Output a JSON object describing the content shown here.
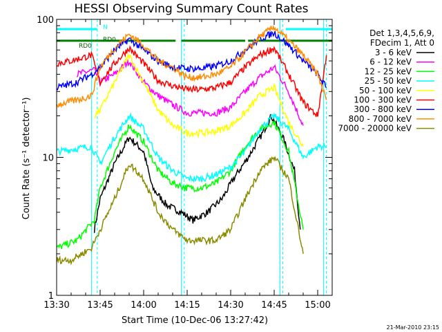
{
  "chart_data": {
    "type": "line",
    "title": "HESSI Observing Summary Count Rates",
    "xlabel": "Start Time (10-Dec-06 13:27:42)",
    "ylabel": "Count Rate (s⁻¹ detector⁻¹)",
    "yscale": "log",
    "ylim": [
      1,
      100
    ],
    "xlim_minutes": [
      13.5,
      15.083
    ],
    "x_ticks": [
      "13:30",
      "13:45",
      "14:00",
      "14:15",
      "14:30",
      "14:45",
      "15:00"
    ],
    "y_ticks": [
      "1",
      "10",
      "100"
    ],
    "legend_header": [
      "Det 1,3,4,5,6,9,",
      "FDecim 1, Att 0"
    ],
    "legend_position": "right",
    "footer": "21-Mar-2010 23:15",
    "annotations": [
      "RD0",
      "RD0",
      "N"
    ],
    "series": [
      {
        "name": "3 - 6 keV",
        "color": "#000000",
        "x": [
          "13:43",
          "13:45",
          "13:50",
          "13:55",
          "14:00",
          "14:03",
          "14:08",
          "14:13",
          "14:17",
          "14:22",
          "14:27",
          "14:31",
          "14:36",
          "14:41",
          "14:44",
          "14:48",
          "14:52",
          "14:54"
        ],
        "y": [
          3,
          5,
          9,
          14,
          11,
          6,
          4.5,
          4,
          3.5,
          4,
          5,
          7,
          10,
          15,
          20,
          14,
          8,
          3
        ]
      },
      {
        "name": "6 - 12 keV",
        "color": "#ff00ff",
        "x": [
          "13:37",
          "13:43",
          "13:45",
          "13:50",
          "13:55",
          "14:00",
          "14:05",
          "14:10",
          "14:15",
          "14:20",
          "14:25",
          "14:30",
          "14:35",
          "14:40",
          "14:45",
          "14:50",
          "14:55"
        ],
        "y": [
          40,
          43,
          35,
          40,
          50,
          35,
          28,
          24,
          21,
          21,
          21,
          23,
          30,
          38,
          45,
          30,
          17
        ]
      },
      {
        "name": "12 - 25 keV",
        "color": "#00ff00",
        "x": [
          "13:30",
          "13:37",
          "13:43",
          "13:45",
          "13:50",
          "13:55",
          "14:00",
          "14:05",
          "14:10",
          "14:15",
          "14:20",
          "14:25",
          "14:30",
          "14:35",
          "14:40",
          "14:45",
          "14:50",
          "14:55"
        ],
        "y": [
          2.2,
          2.5,
          3.5,
          6,
          11,
          17,
          13,
          8,
          6.5,
          6,
          6,
          6.5,
          8,
          12,
          16,
          18,
          11,
          3
        ]
      },
      {
        "name": "25 - 50 keV",
        "color": "#00ffff",
        "x": [
          "13:30",
          "13:42",
          "13:45",
          "13:50",
          "13:55",
          "14:00",
          "14:05",
          "14:10",
          "14:15",
          "14:20",
          "14:25",
          "14:30",
          "14:35",
          "14:40",
          "14:45",
          "14:50",
          "14:55",
          "15:00",
          "15:03"
        ],
        "y": [
          11,
          12,
          9,
          14,
          20,
          16,
          10,
          8,
          7,
          7,
          7.5,
          8.5,
          11,
          16,
          20,
          16,
          10,
          12,
          12
        ]
      },
      {
        "name": "50 - 100 keV",
        "color": "#ffff00",
        "x": [
          "13:43",
          "13:45",
          "13:50",
          "13:55",
          "14:00",
          "14:05",
          "14:10",
          "14:15",
          "14:20",
          "14:25",
          "14:30",
          "14:35",
          "14:40",
          "14:45",
          "14:50",
          "14:55"
        ],
        "y": [
          20,
          22,
          35,
          55,
          35,
          22,
          17,
          15,
          15,
          15.5,
          17,
          21,
          28,
          32,
          18,
          12
        ]
      },
      {
        "name": "100 - 300 keV",
        "color": "#ff0000",
        "x": [
          "13:30",
          "13:35",
          "13:42",
          "13:45",
          "13:50",
          "13:55",
          "14:00",
          "14:05",
          "14:10",
          "14:15",
          "14:20",
          "14:25",
          "14:30",
          "14:35",
          "14:40",
          "14:45",
          "14:50",
          "14:55",
          "15:00",
          "15:03"
        ],
        "y": [
          48,
          50,
          55,
          35,
          48,
          62,
          48,
          36,
          33,
          31,
          31,
          32,
          35,
          45,
          55,
          62,
          40,
          25,
          20,
          55
        ]
      },
      {
        "name": "300 - 800 keV",
        "color": "#0000ff",
        "x": [
          "13:30",
          "13:37",
          "13:42",
          "13:45",
          "13:50",
          "13:55",
          "14:00",
          "14:05",
          "14:10",
          "14:15",
          "14:20",
          "14:25",
          "14:30",
          "14:35",
          "14:40",
          "14:45",
          "14:50",
          "14:55",
          "15:00",
          "15:03"
        ],
        "y": [
          32,
          35,
          40,
          45,
          60,
          72,
          60,
          50,
          45,
          44,
          44,
          46,
          50,
          60,
          72,
          80,
          65,
          50,
          40,
          32
        ]
      },
      {
        "name": "800 - 7000 keV",
        "color": "#ff8c00",
        "x": [
          "13:30",
          "13:37",
          "13:42",
          "13:45",
          "13:50",
          "13:55",
          "14:00",
          "14:05",
          "14:10",
          "14:15",
          "14:20",
          "14:25",
          "14:30",
          "14:35",
          "14:40",
          "14:45",
          "14:50",
          "14:55",
          "15:00",
          "15:03"
        ],
        "y": [
          24,
          26,
          28,
          45,
          62,
          78,
          65,
          50,
          45,
          38,
          38,
          40,
          45,
          58,
          75,
          88,
          70,
          55,
          40,
          26
        ]
      },
      {
        "name": "7000 - 20000 keV",
        "color": "#8b8b00",
        "x": [
          "13:30",
          "13:35",
          "13:42",
          "13:45",
          "13:50",
          "13:55",
          "14:00",
          "14:05",
          "14:10",
          "14:15",
          "14:20",
          "14:25",
          "14:30",
          "14:35",
          "14:40",
          "14:45",
          "14:50",
          "14:55"
        ],
        "y": [
          1.8,
          1.8,
          2.2,
          3,
          5,
          9,
          7,
          4,
          3,
          2.5,
          2.5,
          2.5,
          3,
          5,
          8,
          10,
          7,
          2
        ]
      }
    ],
    "reference_lines": [
      {
        "color": "#00ffff",
        "style": "solid",
        "x": [
          "13:42",
          "14:13",
          "14:47",
          "15:02"
        ]
      },
      {
        "color": "#00ffff",
        "style": "dashed",
        "x": [
          "13:44",
          "14:14",
          "14:48",
          "15:03"
        ]
      },
      {
        "color": "#008000",
        "y": 70,
        "segments": [
          [
            "13:30",
            "13:43"
          ],
          [
            "13:43",
            "14:11"
          ],
          [
            "14:13",
            "14:35"
          ],
          [
            "14:36",
            "15:05"
          ]
        ]
      },
      {
        "color": "#00ffff",
        "y": 85,
        "segments": [
          [
            "13:30",
            "13:44"
          ],
          [
            "14:49",
            "15:05"
          ]
        ]
      }
    ]
  }
}
